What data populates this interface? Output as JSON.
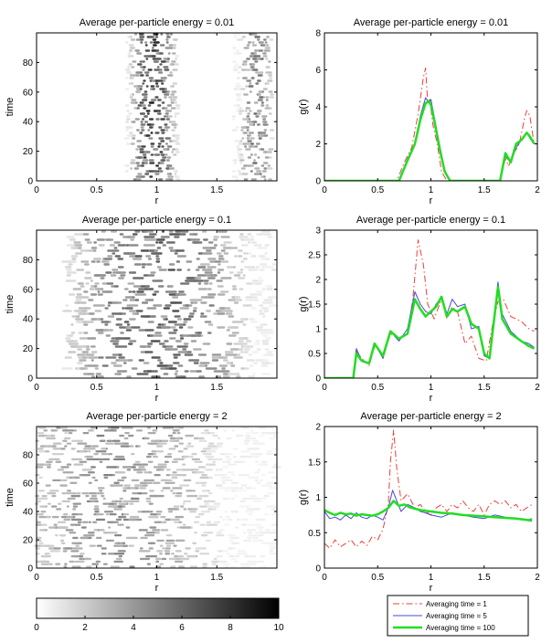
{
  "chart_data": [
    {
      "id": "heat1",
      "type": "heatmap",
      "title": "Average per-particle energy = 0.01",
      "xlabel": "r",
      "ylabel": "time",
      "xlim": [
        0,
        2
      ],
      "ylim": [
        0,
        100
      ],
      "xticks": [
        0,
        0.5,
        1,
        1.5
      ],
      "xtick_labels": [
        "0",
        "0.5",
        "1",
        "1.5"
      ],
      "yticks": [
        0,
        20,
        40,
        60,
        80
      ],
      "ytick_labels": [
        "0",
        "20",
        "40",
        "60",
        "80"
      ],
      "bands": [
        {
          "r_min": 0.75,
          "r_max": 1.18,
          "center": 0.97,
          "peak_intensity": 9
        },
        {
          "r_min": 1.64,
          "r_max": 1.96,
          "center": 1.83,
          "peak_intensity": 6
        }
      ]
    },
    {
      "id": "gr1",
      "type": "line",
      "title": "Average per-particle energy = 0.01",
      "xlabel": "r",
      "ylabel": "g(r)",
      "xlim": [
        0,
        2
      ],
      "ylim": [
        0,
        8
      ],
      "xticks": [
        0,
        0.5,
        1,
        1.5,
        2
      ],
      "xtick_labels": [
        "0",
        "0.5",
        "1",
        "1.5",
        "2"
      ],
      "yticks": [
        0,
        2,
        4,
        6,
        8
      ],
      "ytick_labels": [
        "0",
        "2",
        "4",
        "6",
        "8"
      ],
      "series": [
        {
          "name": "Averaging time = 1",
          "color": "#e8403a",
          "style": "dashdot",
          "width": 1,
          "x": [
            0,
            0.68,
            0.75,
            0.82,
            0.88,
            0.93,
            0.95,
            0.97,
            0.99,
            1.02,
            1.06,
            1.1,
            1.15,
            1.2,
            1.65,
            1.7,
            1.73,
            1.78,
            1.83,
            1.88,
            1.9,
            1.93,
            1.97
          ],
          "y": [
            0,
            0,
            1.0,
            1.8,
            3.6,
            5.6,
            6.1,
            4.2,
            4.4,
            3.0,
            2.0,
            0.5,
            0,
            0,
            0,
            1.2,
            0.8,
            1.5,
            2.0,
            3.4,
            3.8,
            3.5,
            2.0
          ]
        },
        {
          "name": "Averaging time = 5",
          "color": "#4a4ad8",
          "style": "solid",
          "width": 1,
          "x": [
            0,
            0.7,
            0.78,
            0.85,
            0.9,
            0.95,
            0.98,
            1.0,
            1.03,
            1.08,
            1.13,
            1.18,
            1.65,
            1.7,
            1.75,
            1.8,
            1.85,
            1.9,
            1.93,
            1.97
          ],
          "y": [
            0,
            0,
            1.2,
            2.0,
            3.5,
            4.5,
            4.2,
            4.4,
            3.5,
            2.0,
            0.6,
            0,
            0,
            1.3,
            1.0,
            1.8,
            2.2,
            2.6,
            2.3,
            2.0
          ]
        },
        {
          "name": "Averaging time = 100",
          "color": "#22dd22",
          "style": "solid",
          "width": 2.5,
          "x": [
            0,
            0.7,
            0.78,
            0.85,
            0.9,
            0.95,
            0.98,
            1.0,
            1.03,
            1.08,
            1.13,
            1.18,
            1.65,
            1.7,
            1.75,
            1.8,
            1.85,
            1.9,
            1.93,
            1.97
          ],
          "y": [
            0,
            0,
            1.1,
            2.0,
            3.3,
            4.2,
            4.3,
            4.1,
            3.3,
            1.8,
            0.5,
            0,
            0,
            1.5,
            1.0,
            2.0,
            2.2,
            2.6,
            2.4,
            2.0
          ]
        }
      ]
    },
    {
      "id": "heat2",
      "type": "heatmap",
      "title": "Average per-particle energy = 0.1",
      "xlabel": "r",
      "ylabel": "time",
      "xlim": [
        0,
        2
      ],
      "ylim": [
        0,
        100
      ],
      "xticks": [
        0,
        0.5,
        1,
        1.5
      ],
      "xtick_labels": [
        "0",
        "0.5",
        "1",
        "1.5"
      ],
      "yticks": [
        0,
        20,
        40,
        60,
        80
      ],
      "ytick_labels": [
        "0",
        "20",
        "40",
        "60",
        "80"
      ],
      "bands": [
        {
          "r_min": 0.25,
          "r_max": 1.98,
          "center": 1.0,
          "peak_intensity": 7
        }
      ]
    },
    {
      "id": "gr2",
      "type": "line",
      "title": "Average per-particle energy = 0.1",
      "xlabel": "r",
      "ylabel": "g(r)",
      "xlim": [
        0,
        2
      ],
      "ylim": [
        0,
        3
      ],
      "xticks": [
        0,
        0.5,
        1,
        1.5,
        2
      ],
      "xtick_labels": [
        "0",
        "0.5",
        "1",
        "1.5",
        "2"
      ],
      "yticks": [
        0,
        0.5,
        1,
        1.5,
        2,
        2.5,
        3
      ],
      "ytick_labels": [
        "0",
        "0.5",
        "1",
        "1.5",
        "2",
        "2.5",
        "3"
      ],
      "series": [
        {
          "name": "Averaging time = 1",
          "color": "#e8403a",
          "style": "dashdot",
          "width": 1,
          "x": [
            0,
            0.27,
            0.3,
            0.35,
            0.42,
            0.48,
            0.55,
            0.62,
            0.7,
            0.78,
            0.83,
            0.88,
            0.93,
            0.97,
            1.03,
            1.1,
            1.15,
            1.2,
            1.25,
            1.32,
            1.38,
            1.45,
            1.52,
            1.58,
            1.63,
            1.68,
            1.75,
            1.85,
            1.92,
            1.97
          ],
          "y": [
            0,
            0,
            0.55,
            0.4,
            0.25,
            0.7,
            0.4,
            0.9,
            0.8,
            0.9,
            1.6,
            2.8,
            2.3,
            1.5,
            1.2,
            1.6,
            1.2,
            1.45,
            1.35,
            0.7,
            0.85,
            0.4,
            0.35,
            1.1,
            1.55,
            1.6,
            1.25,
            1.15,
            1.0,
            0.95
          ]
        },
        {
          "name": "Averaging time = 5",
          "color": "#4a4ad8",
          "style": "solid",
          "width": 1,
          "x": [
            0,
            0.27,
            0.3,
            0.35,
            0.42,
            0.47,
            0.55,
            0.62,
            0.7,
            0.78,
            0.85,
            0.9,
            0.95,
            1.0,
            1.05,
            1.1,
            1.15,
            1.2,
            1.25,
            1.32,
            1.38,
            1.45,
            1.5,
            1.55,
            1.63,
            1.67,
            1.75,
            1.85,
            1.92,
            1.97
          ],
          "y": [
            0,
            0,
            0.6,
            0.35,
            0.3,
            0.7,
            0.4,
            0.95,
            0.75,
            1.0,
            1.75,
            1.5,
            1.35,
            1.3,
            1.5,
            1.65,
            1.3,
            1.6,
            1.45,
            1.5,
            1.0,
            1.05,
            0.45,
            0.4,
            1.95,
            1.3,
            0.95,
            0.75,
            0.7,
            0.62
          ]
        },
        {
          "name": "Averaging time = 100",
          "color": "#22dd22",
          "style": "solid",
          "width": 2.5,
          "x": [
            0,
            0.27,
            0.3,
            0.35,
            0.42,
            0.47,
            0.55,
            0.62,
            0.7,
            0.78,
            0.85,
            0.9,
            0.95,
            1.0,
            1.05,
            1.1,
            1.15,
            1.2,
            1.25,
            1.32,
            1.38,
            1.45,
            1.5,
            1.55,
            1.63,
            1.67,
            1.75,
            1.85,
            1.92,
            1.97
          ],
          "y": [
            0,
            0,
            0.5,
            0.35,
            0.3,
            0.7,
            0.45,
            0.95,
            0.8,
            0.9,
            1.6,
            1.4,
            1.25,
            1.35,
            1.45,
            1.65,
            1.25,
            1.4,
            1.35,
            1.45,
            1.1,
            1.0,
            0.5,
            0.4,
            1.85,
            1.2,
            0.9,
            0.75,
            0.65,
            0.6
          ]
        }
      ]
    },
    {
      "id": "heat3",
      "type": "heatmap",
      "title": "Average per-particle energy = 2",
      "xlabel": "r",
      "ylabel": "time",
      "xlim": [
        0,
        2
      ],
      "ylim": [
        0,
        100
      ],
      "xticks": [
        0,
        0.5,
        1,
        1.5
      ],
      "xtick_labels": [
        "0",
        "0.5",
        "1",
        "1.5"
      ],
      "yticks": [
        0,
        20,
        40,
        60,
        80
      ],
      "ytick_labels": [
        "0",
        "20",
        "40",
        "60",
        "80"
      ],
      "bands": [
        {
          "r_min": 0.0,
          "r_max": 2.0,
          "center": 0.65,
          "peak_intensity": 5
        }
      ]
    },
    {
      "id": "gr3",
      "type": "line",
      "title": "Average per-particle energy = 2",
      "xlabel": "r",
      "ylabel": "g(r)",
      "xlim": [
        0,
        2
      ],
      "ylim": [
        0,
        2
      ],
      "xticks": [
        0,
        0.5,
        1,
        1.5,
        2
      ],
      "xtick_labels": [
        "0",
        "0.5",
        "1",
        "1.5",
        "2"
      ],
      "yticks": [
        0,
        0.5,
        1,
        1.5,
        2
      ],
      "ytick_labels": [
        "0",
        "0.5",
        "1",
        "1.5",
        "2"
      ],
      "series": [
        {
          "name": "Averaging time = 1",
          "color": "#e8403a",
          "style": "dashdot",
          "width": 1,
          "x": [
            0,
            0.05,
            0.1,
            0.15,
            0.2,
            0.25,
            0.3,
            0.35,
            0.4,
            0.45,
            0.5,
            0.55,
            0.6,
            0.62,
            0.65,
            0.68,
            0.72,
            0.78,
            0.85,
            0.9,
            0.95,
            1.0,
            1.05,
            1.1,
            1.15,
            1.2,
            1.25,
            1.3,
            1.35,
            1.4,
            1.45,
            1.5,
            1.55,
            1.6,
            1.65,
            1.7,
            1.75,
            1.8,
            1.85,
            1.9,
            1.95
          ],
          "y": [
            0.35,
            0.28,
            0.4,
            0.3,
            0.35,
            0.4,
            0.3,
            0.38,
            0.32,
            0.45,
            0.4,
            0.55,
            0.9,
            1.5,
            1.95,
            1.4,
            0.95,
            1.05,
            0.85,
            0.9,
            0.8,
            0.75,
            0.85,
            0.9,
            0.8,
            0.9,
            0.85,
            0.95,
            0.85,
            0.8,
            0.9,
            0.75,
            0.9,
            0.95,
            0.9,
            0.95,
            0.85,
            0.9,
            0.8,
            0.85,
            0.9
          ]
        },
        {
          "name": "Averaging time = 5",
          "color": "#4a4ad8",
          "style": "solid",
          "width": 1,
          "x": [
            0,
            0.05,
            0.1,
            0.15,
            0.2,
            0.25,
            0.3,
            0.35,
            0.4,
            0.45,
            0.5,
            0.55,
            0.6,
            0.64,
            0.68,
            0.72,
            0.78,
            0.85,
            0.9,
            0.95,
            1.0,
            1.1,
            1.2,
            1.3,
            1.4,
            1.5,
            1.6,
            1.7,
            1.8,
            1.9,
            1.95
          ],
          "y": [
            0.8,
            0.7,
            0.72,
            0.68,
            0.75,
            0.7,
            0.78,
            0.72,
            0.7,
            0.75,
            0.72,
            0.68,
            0.85,
            1.1,
            0.95,
            0.8,
            0.9,
            0.85,
            0.8,
            0.78,
            0.75,
            0.72,
            0.78,
            0.75,
            0.72,
            0.7,
            0.75,
            0.72,
            0.7,
            0.68,
            0.7
          ]
        },
        {
          "name": "Averaging time = 100",
          "color": "#22dd22",
          "style": "solid",
          "width": 2.5,
          "x": [
            0,
            0.05,
            0.1,
            0.15,
            0.2,
            0.25,
            0.3,
            0.35,
            0.4,
            0.45,
            0.5,
            0.55,
            0.6,
            0.65,
            0.7,
            0.75,
            0.8,
            0.9,
            1.0,
            1.1,
            1.2,
            1.3,
            1.4,
            1.5,
            1.6,
            1.7,
            1.8,
            1.9,
            1.95
          ],
          "y": [
            0.82,
            0.78,
            0.75,
            0.78,
            0.76,
            0.77,
            0.74,
            0.76,
            0.75,
            0.74,
            0.76,
            0.8,
            0.85,
            0.95,
            0.88,
            0.9,
            0.86,
            0.82,
            0.8,
            0.78,
            0.77,
            0.75,
            0.74,
            0.73,
            0.72,
            0.71,
            0.7,
            0.68,
            0.67
          ]
        }
      ]
    }
  ],
  "colorbar": {
    "min": 0,
    "max": 10,
    "ticks": [
      0,
      2,
      4,
      6,
      8,
      10
    ],
    "tick_labels": [
      "0",
      "2",
      "4",
      "6",
      "8",
      "10"
    ]
  },
  "legend": {
    "entries": [
      {
        "label": "Averaging time = 1",
        "color": "#e8403a",
        "style": "dashdot",
        "width": 1
      },
      {
        "label": "Averaging time = 5",
        "color": "#4a4ad8",
        "style": "solid",
        "width": 1
      },
      {
        "label": "Averaging time = 100",
        "color": "#22dd22",
        "style": "solid",
        "width": 2.5
      }
    ]
  }
}
